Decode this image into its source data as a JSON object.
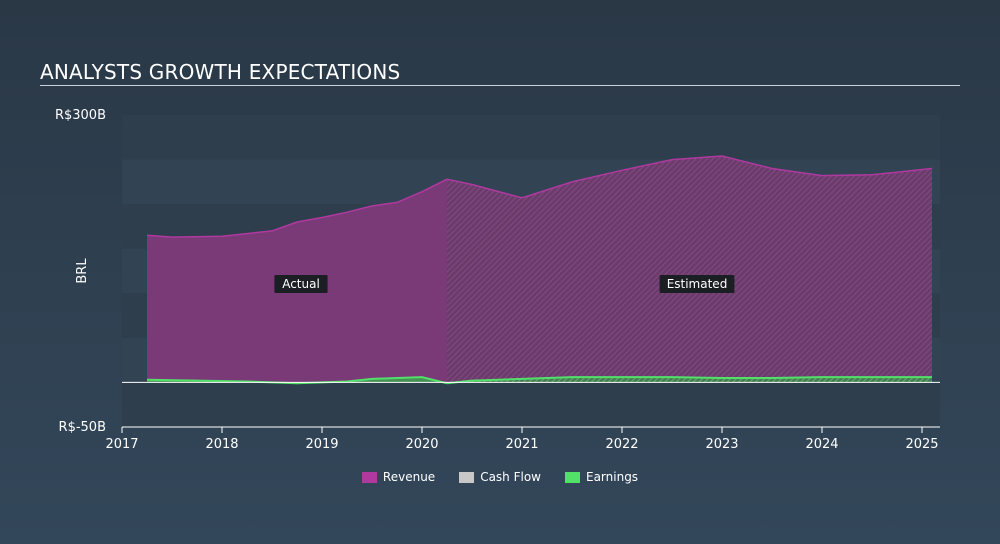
{
  "title": "ANALYSTS GROWTH EXPECTATIONS",
  "chart_data": {
    "type": "area",
    "ylabel": "BRL",
    "ylim": [
      -50,
      300
    ],
    "ytick_labels": [
      {
        "value": 300,
        "label": "R$300B"
      },
      {
        "value": -50,
        "label": "R$-50B"
      }
    ],
    "xlim": [
      2017,
      2025.18
    ],
    "xticks": [
      2017,
      2018,
      2019,
      2020,
      2021,
      2022,
      2023,
      2024,
      2025
    ],
    "split_x": 2020.25,
    "region_labels": {
      "actual": "Actual",
      "estimated": "Estimated"
    },
    "series": [
      {
        "name": "Revenue",
        "color": "#b0399f",
        "actual": [
          {
            "x": 2017.25,
            "y": 165
          },
          {
            "x": 2017.5,
            "y": 163
          },
          {
            "x": 2018.0,
            "y": 164
          },
          {
            "x": 2018.5,
            "y": 170
          },
          {
            "x": 2018.75,
            "y": 180
          },
          {
            "x": 2019.0,
            "y": 185
          },
          {
            "x": 2019.25,
            "y": 191
          },
          {
            "x": 2019.5,
            "y": 198
          },
          {
            "x": 2019.75,
            "y": 202
          },
          {
            "x": 2020.0,
            "y": 214
          },
          {
            "x": 2020.25,
            "y": 228
          }
        ],
        "estimated": [
          {
            "x": 2020.25,
            "y": 228
          },
          {
            "x": 2020.5,
            "y": 222
          },
          {
            "x": 2021.0,
            "y": 207
          },
          {
            "x": 2021.5,
            "y": 225
          },
          {
            "x": 2022.0,
            "y": 238
          },
          {
            "x": 2022.5,
            "y": 250
          },
          {
            "x": 2023.0,
            "y": 254
          },
          {
            "x": 2023.5,
            "y": 240
          },
          {
            "x": 2024.0,
            "y": 232
          },
          {
            "x": 2024.5,
            "y": 233
          },
          {
            "x": 2025.1,
            "y": 240
          }
        ]
      },
      {
        "name": "Cash Flow",
        "color": "#c8c8c8",
        "actual": [],
        "estimated": []
      },
      {
        "name": "Earnings",
        "color": "#53e069",
        "actual": [
          {
            "x": 2017.25,
            "y": 3
          },
          {
            "x": 2017.75,
            "y": 2
          },
          {
            "x": 2018.25,
            "y": 1
          },
          {
            "x": 2018.75,
            "y": -1
          },
          {
            "x": 2019.0,
            "y": 0
          },
          {
            "x": 2019.25,
            "y": 1
          },
          {
            "x": 2019.5,
            "y": 4
          },
          {
            "x": 2019.75,
            "y": 5
          },
          {
            "x": 2020.0,
            "y": 6
          },
          {
            "x": 2020.25,
            "y": -1
          }
        ],
        "estimated": [
          {
            "x": 2020.25,
            "y": -1
          },
          {
            "x": 2020.5,
            "y": 2
          },
          {
            "x": 2021.0,
            "y": 4
          },
          {
            "x": 2021.5,
            "y": 6
          },
          {
            "x": 2022.0,
            "y": 6
          },
          {
            "x": 2022.5,
            "y": 6
          },
          {
            "x": 2023.0,
            "y": 5
          },
          {
            "x": 2023.5,
            "y": 5
          },
          {
            "x": 2024.0,
            "y": 6
          },
          {
            "x": 2024.5,
            "y": 6
          },
          {
            "x": 2025.1,
            "y": 6
          }
        ]
      }
    ],
    "legend": [
      {
        "label": "Revenue",
        "color": "#b0399f"
      },
      {
        "label": "Cash Flow",
        "color": "#c8c8c8"
      },
      {
        "label": "Earnings",
        "color": "#53e069"
      }
    ]
  }
}
